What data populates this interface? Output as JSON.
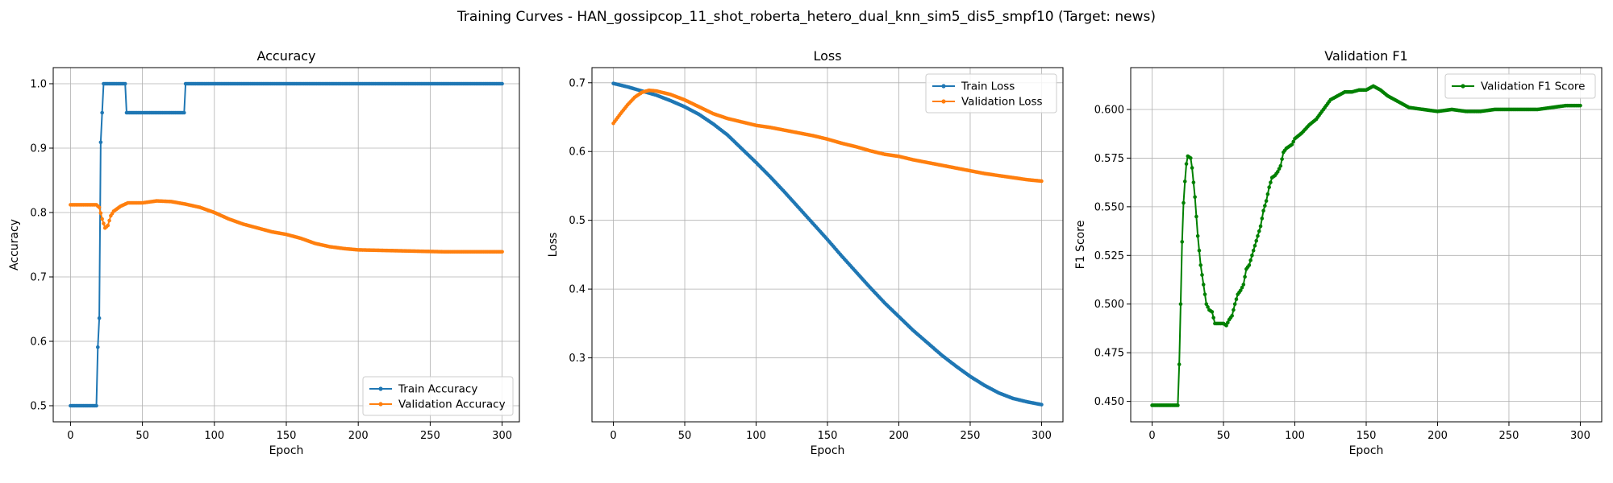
{
  "figure": {
    "suptitle": "Training Curves - HAN_gossipcop_11_shot_roberta_hetero_dual_knn_sim5_dis5_smpf10 (Target: news)"
  },
  "chart_data": [
    {
      "type": "line",
      "title": "Accuracy",
      "xlabel": "Epoch",
      "ylabel": "Accuracy",
      "xlim": [
        -12,
        312
      ],
      "ylim": [
        0.475,
        1.025
      ],
      "xticks": [
        0,
        50,
        100,
        150,
        200,
        250,
        300
      ],
      "yticks": [
        0.5,
        0.6,
        0.7,
        0.8,
        0.9,
        1.0
      ],
      "ytick_labels": [
        "0.5",
        "0.6",
        "0.7",
        "0.8",
        "0.9",
        "1.0"
      ],
      "grid": true,
      "legend": "lower-right",
      "series": [
        {
          "name": "Train Accuracy",
          "color": "#1f77b4",
          "points": [
            [
              0,
              0.5
            ],
            [
              18,
              0.5
            ],
            [
              19,
              0.591
            ],
            [
              20,
              0.636
            ],
            [
              21,
              0.909
            ],
            [
              22,
              0.955
            ],
            [
              23,
              1.0
            ],
            [
              38,
              1.0
            ],
            [
              39,
              0.955
            ],
            [
              79,
              0.955
            ],
            [
              80,
              1.0
            ],
            [
              300,
              1.0
            ]
          ]
        },
        {
          "name": "Validation Accuracy",
          "color": "#ff7f0e",
          "points": [
            [
              0,
              0.812
            ],
            [
              18,
              0.812
            ],
            [
              20,
              0.808
            ],
            [
              22,
              0.79
            ],
            [
              24,
              0.776
            ],
            [
              26,
              0.78
            ],
            [
              28,
              0.795
            ],
            [
              30,
              0.802
            ],
            [
              35,
              0.81
            ],
            [
              40,
              0.815
            ],
            [
              50,
              0.815
            ],
            [
              60,
              0.818
            ],
            [
              70,
              0.817
            ],
            [
              80,
              0.813
            ],
            [
              90,
              0.808
            ],
            [
              100,
              0.8
            ],
            [
              110,
              0.79
            ],
            [
              120,
              0.782
            ],
            [
              130,
              0.776
            ],
            [
              140,
              0.77
            ],
            [
              150,
              0.766
            ],
            [
              160,
              0.76
            ],
            [
              170,
              0.752
            ],
            [
              180,
              0.747
            ],
            [
              190,
              0.744
            ],
            [
              200,
              0.742
            ],
            [
              220,
              0.741
            ],
            [
              240,
              0.74
            ],
            [
              260,
              0.739
            ],
            [
              280,
              0.739
            ],
            [
              300,
              0.739
            ]
          ]
        }
      ]
    },
    {
      "type": "line",
      "title": "Loss",
      "xlabel": "Epoch",
      "ylabel": "Loss",
      "xlim": [
        -15,
        315
      ],
      "ylim": [
        0.207,
        0.722
      ],
      "xticks": [
        0,
        50,
        100,
        150,
        200,
        250,
        300
      ],
      "yticks": [
        0.3,
        0.4,
        0.5,
        0.6,
        0.7
      ],
      "ytick_labels": [
        "0.3",
        "0.4",
        "0.5",
        "0.6",
        "0.7"
      ],
      "grid": true,
      "legend": "top-right",
      "series": [
        {
          "name": "Train Loss",
          "color": "#1f77b4",
          "points": [
            [
              0,
              0.699
            ],
            [
              10,
              0.694
            ],
            [
              20,
              0.688
            ],
            [
              30,
              0.682
            ],
            [
              40,
              0.674
            ],
            [
              50,
              0.665
            ],
            [
              60,
              0.654
            ],
            [
              70,
              0.64
            ],
            [
              80,
              0.624
            ],
            [
              90,
              0.604
            ],
            [
              100,
              0.584
            ],
            [
              110,
              0.563
            ],
            [
              120,
              0.541
            ],
            [
              130,
              0.518
            ],
            [
              140,
              0.495
            ],
            [
              150,
              0.472
            ],
            [
              160,
              0.448
            ],
            [
              170,
              0.425
            ],
            [
              180,
              0.402
            ],
            [
              190,
              0.38
            ],
            [
              200,
              0.36
            ],
            [
              210,
              0.34
            ],
            [
              220,
              0.322
            ],
            [
              230,
              0.304
            ],
            [
              240,
              0.288
            ],
            [
              250,
              0.273
            ],
            [
              260,
              0.26
            ],
            [
              270,
              0.249
            ],
            [
              280,
              0.241
            ],
            [
              290,
              0.236
            ],
            [
              300,
              0.232
            ]
          ]
        },
        {
          "name": "Validation Loss",
          "color": "#ff7f0e",
          "points": [
            [
              0,
              0.641
            ],
            [
              5,
              0.655
            ],
            [
              10,
              0.668
            ],
            [
              15,
              0.679
            ],
            [
              20,
              0.686
            ],
            [
              25,
              0.689
            ],
            [
              30,
              0.688
            ],
            [
              40,
              0.683
            ],
            [
              50,
              0.675
            ],
            [
              60,
              0.665
            ],
            [
              70,
              0.655
            ],
            [
              80,
              0.648
            ],
            [
              90,
              0.643
            ],
            [
              100,
              0.638
            ],
            [
              110,
              0.635
            ],
            [
              120,
              0.631
            ],
            [
              130,
              0.627
            ],
            [
              140,
              0.623
            ],
            [
              150,
              0.618
            ],
            [
              160,
              0.612
            ],
            [
              170,
              0.607
            ],
            [
              180,
              0.601
            ],
            [
              190,
              0.596
            ],
            [
              200,
              0.593
            ],
            [
              210,
              0.588
            ],
            [
              220,
              0.584
            ],
            [
              230,
              0.58
            ],
            [
              240,
              0.576
            ],
            [
              250,
              0.572
            ],
            [
              260,
              0.568
            ],
            [
              270,
              0.565
            ],
            [
              280,
              0.562
            ],
            [
              290,
              0.559
            ],
            [
              300,
              0.557
            ]
          ]
        }
      ]
    },
    {
      "type": "line",
      "title": "Validation F1",
      "xlabel": "Epoch",
      "ylabel": "F1 Score",
      "xlim": [
        -15,
        315
      ],
      "ylim": [
        0.4395,
        0.6215
      ],
      "xticks": [
        0,
        50,
        100,
        150,
        200,
        250,
        300
      ],
      "yticks": [
        0.45,
        0.475,
        0.5,
        0.525,
        0.55,
        0.575,
        0.6
      ],
      "ytick_labels": [
        "0.450",
        "0.475",
        "0.500",
        "0.525",
        "0.550",
        "0.575",
        "0.600"
      ],
      "grid": true,
      "legend": "top-right",
      "series": [
        {
          "name": "Validation F1 Score",
          "color": "#008000",
          "points": [
            [
              0,
              0.448
            ],
            [
              18,
              0.448
            ],
            [
              19,
              0.469
            ],
            [
              20,
              0.5
            ],
            [
              21,
              0.532
            ],
            [
              22,
              0.552
            ],
            [
              23,
              0.563
            ],
            [
              24,
              0.572
            ],
            [
              25,
              0.576
            ],
            [
              27,
              0.575
            ],
            [
              28,
              0.57
            ],
            [
              30,
              0.555
            ],
            [
              32,
              0.535
            ],
            [
              34,
              0.52
            ],
            [
              36,
              0.51
            ],
            [
              38,
              0.5
            ],
            [
              40,
              0.497
            ],
            [
              42,
              0.496
            ],
            [
              44,
              0.49
            ],
            [
              46,
              0.49
            ],
            [
              48,
              0.49
            ],
            [
              50,
              0.49
            ],
            [
              52,
              0.489
            ],
            [
              54,
              0.492
            ],
            [
              56,
              0.494
            ],
            [
              58,
              0.5
            ],
            [
              60,
              0.505
            ],
            [
              62,
              0.507
            ],
            [
              64,
              0.51
            ],
            [
              66,
              0.518
            ],
            [
              68,
              0.52
            ],
            [
              70,
              0.525
            ],
            [
              72,
              0.53
            ],
            [
              74,
              0.535
            ],
            [
              76,
              0.54
            ],
            [
              78,
              0.548
            ],
            [
              80,
              0.553
            ],
            [
              82,
              0.56
            ],
            [
              84,
              0.565
            ],
            [
              86,
              0.566
            ],
            [
              88,
              0.568
            ],
            [
              90,
              0.571
            ],
            [
              92,
              0.578
            ],
            [
              94,
              0.58
            ],
            [
              96,
              0.581
            ],
            [
              98,
              0.582
            ],
            [
              100,
              0.585
            ],
            [
              105,
              0.588
            ],
            [
              110,
              0.592
            ],
            [
              115,
              0.595
            ],
            [
              120,
              0.6
            ],
            [
              125,
              0.605
            ],
            [
              130,
              0.607
            ],
            [
              135,
              0.609
            ],
            [
              140,
              0.609
            ],
            [
              145,
              0.61
            ],
            [
              150,
              0.61
            ],
            [
              155,
              0.612
            ],
            [
              160,
              0.61
            ],
            [
              165,
              0.607
            ],
            [
              170,
              0.605
            ],
            [
              175,
              0.603
            ],
            [
              180,
              0.601
            ],
            [
              190,
              0.6
            ],
            [
              200,
              0.599
            ],
            [
              210,
              0.6
            ],
            [
              220,
              0.599
            ],
            [
              230,
              0.599
            ],
            [
              240,
              0.6
            ],
            [
              250,
              0.6
            ],
            [
              260,
              0.6
            ],
            [
              270,
              0.6
            ],
            [
              280,
              0.601
            ],
            [
              290,
              0.602
            ],
            [
              300,
              0.602
            ]
          ]
        }
      ]
    }
  ]
}
